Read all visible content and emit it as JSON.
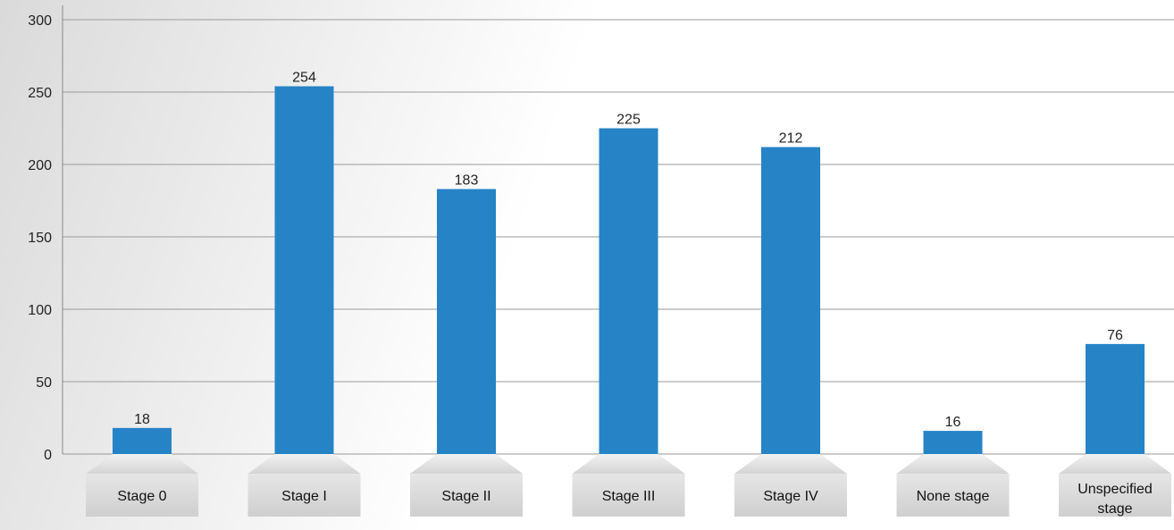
{
  "chart_data": {
    "type": "bar",
    "categories": [
      "Stage 0",
      "Stage I",
      "Stage II",
      "Stage III",
      "Stage IV",
      "None stage",
      "Unspecified stage"
    ],
    "values": [
      18,
      254,
      183,
      225,
      212,
      16,
      76
    ],
    "ylim": [
      0,
      300
    ],
    "yticks": [
      0,
      50,
      100,
      150,
      200,
      250,
      300
    ],
    "grid": true,
    "title": "",
    "xlabel": "",
    "ylabel": "",
    "colors": {
      "bar": "#2683c6",
      "grid": "#9a9a9a",
      "label_box": "#d6d6d6"
    }
  }
}
